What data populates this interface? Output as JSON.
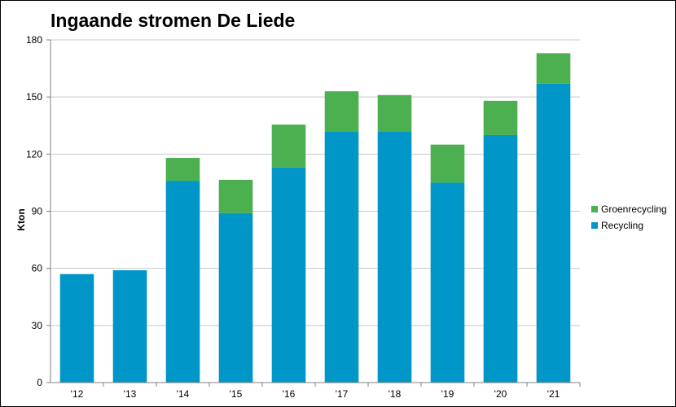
{
  "chart_data": {
    "type": "bar",
    "stacked": true,
    "title": "Ingaande stromen De Liede",
    "xlabel": "",
    "ylabel": "Kton",
    "ylim": [
      0,
      180
    ],
    "yticks": [
      0,
      30,
      60,
      90,
      120,
      150,
      180
    ],
    "grid": true,
    "legend": "right",
    "categories": [
      "'12",
      "'13",
      "'14",
      "'15",
      "'16",
      "'17",
      "'18",
      "'19",
      "'20",
      "'21"
    ],
    "series": [
      {
        "name": "Recycling",
        "color": "#0096c8",
        "values": [
          57,
          59,
          106,
          89,
          113,
          132,
          132,
          105,
          130,
          157
        ]
      },
      {
        "name": "Groenrecycling",
        "color": "#4caf50",
        "values": [
          0,
          0,
          12,
          17.5,
          22.5,
          21,
          19,
          20,
          18,
          16
        ]
      }
    ]
  }
}
